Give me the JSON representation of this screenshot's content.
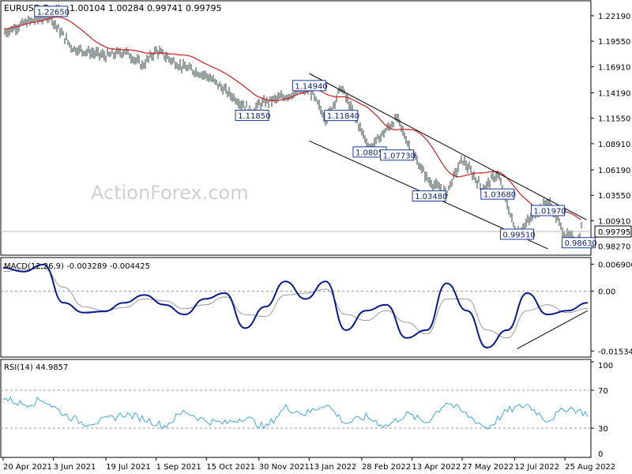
{
  "header": {
    "symbol": "EURUSD,Daily",
    "ohlc": "1.00104 1.00284 0.99741 0.99795"
  },
  "watermark": "ActionForex.com",
  "colors": {
    "price_bars": "#2f3f3f",
    "moving_average": "#cc1f1f",
    "label_box_border": "#1e3799",
    "label_text": "#0c1f6e",
    "macd_main": "#0a1a8c",
    "macd_signal": "#9a9a9a",
    "rsi_line": "#3fa9d6",
    "current_price_box": "#ffffff"
  },
  "x_axis": {
    "labels": [
      "20 Apr 2021",
      "3 Jun 2021",
      "19 Jul 2021",
      "1 Sep 2021",
      "15 Oct 2021",
      "30 Nov 2021",
      "13 Jan 2022",
      "28 Feb 2022",
      "13 Apr 2022",
      "27 May 2022",
      "12 Jul 2022",
      "25 Aug 2022"
    ]
  },
  "chart_data": [
    {
      "panel": "price",
      "type": "line",
      "title": "EURUSD,Daily",
      "y_axis_ticks": [
        "1.22190",
        "1.19550",
        "1.16910",
        "1.14190",
        "1.11550",
        "1.08910",
        "1.06190",
        "1.03550",
        "1.00910",
        "0.98270"
      ],
      "ylim": [
        0.975,
        1.235
      ],
      "current_price": "0.99795",
      "approximate_price_path": [
        {
          "date": "20 Apr 2021",
          "close": 1.204
        },
        {
          "date": "10 May 2021",
          "close": 1.215
        },
        {
          "date": "1 Jun 2021",
          "close": 1.222
        },
        {
          "date": "3 Jun 2021",
          "close": 1.215
        },
        {
          "date": "20 Jun 2021",
          "close": 1.188
        },
        {
          "date": "19 Jul 2021",
          "close": 1.18
        },
        {
          "date": "5 Aug 2021",
          "close": 1.185
        },
        {
          "date": "20 Aug 2021",
          "close": 1.17
        },
        {
          "date": "1 Sep 2021",
          "close": 1.186
        },
        {
          "date": "22 Sep 2021",
          "close": 1.17
        },
        {
          "date": "15 Oct 2021",
          "close": 1.16
        },
        {
          "date": "24 Nov 2021",
          "close": 1.122
        },
        {
          "date": "30 Nov 2021",
          "close": 1.13
        },
        {
          "date": "13 Jan 2022",
          "close": 1.146
        },
        {
          "date": "28 Jan 2022",
          "close": 1.114
        },
        {
          "date": "10 Feb 2022",
          "close": 1.148
        },
        {
          "date": "7 Mar 2022",
          "close": 1.084
        },
        {
          "date": "31 Mar 2022",
          "close": 1.116
        },
        {
          "date": "13 Apr 2022",
          "close": 1.08
        },
        {
          "date": "28 Apr 2022",
          "close": 1.05
        },
        {
          "date": "13 May 2022",
          "close": 1.038
        },
        {
          "date": "27 May 2022",
          "close": 1.073
        },
        {
          "date": "14 Jun 2022",
          "close": 1.042
        },
        {
          "date": "27 Jun 2022",
          "close": 1.058
        },
        {
          "date": "12 Jul 2022",
          "close": 1.001
        },
        {
          "date": "14 Jul 2022",
          "close": 0.996
        },
        {
          "date": "10 Aug 2022",
          "close": 1.03
        },
        {
          "date": "25 Aug 2022",
          "close": 0.995
        },
        {
          "date": "6 Sep 2022",
          "close": 0.988
        },
        {
          "date": "9 Sep 2022",
          "close": 1.005
        },
        {
          "date": "13 Sep 2022",
          "close": 0.998
        }
      ],
      "annotations": [
        {
          "label": "1.22650",
          "date": "1 Jun 2021",
          "value": 1.2265
        },
        {
          "label": "1.11850",
          "date": "24 Nov 2021",
          "value": 1.1185
        },
        {
          "label": "1.14940",
          "date": "13 Jan 2022",
          "value": 1.1494
        },
        {
          "label": "1.11840",
          "date": "10 Feb 2022",
          "value": 1.1184
        },
        {
          "label": "1.08050",
          "date": "7 Mar 2022",
          "value": 1.0805
        },
        {
          "label": "1.07730",
          "date": "31 Mar 2022",
          "value": 1.0773
        },
        {
          "label": "1.03480",
          "date": "28 Apr 2022",
          "value": 1.0348
        },
        {
          "label": "1.03680",
          "date": "27 Jun 2022",
          "value": 1.0368
        },
        {
          "label": "0.99510",
          "date": "14 Jul 2022",
          "value": 0.9951
        },
        {
          "label": "1.01970",
          "date": "10 Aug 2022",
          "value": 1.0197
        },
        {
          "label": "0.98630",
          "date": "6 Sep 2022",
          "value": 0.9863
        }
      ],
      "trend_lines": [
        {
          "from": {
            "date": "13 Jan 2022",
            "value": 1.162
          },
          "to": {
            "date": "13 Sep 2022",
            "value": 1.01
          }
        },
        {
          "from": {
            "date": "13 Jan 2022",
            "value": 1.092
          },
          "to": {
            "date": "10 Aug 2022",
            "value": 0.98
          }
        }
      ]
    },
    {
      "panel": "macd",
      "type": "line",
      "title": "MACD(12,26,9) -0.003289 -0.004425",
      "y_axis_ticks": [
        "0.006906",
        "0.00",
        "-0.015348"
      ],
      "ylim": [
        -0.0165,
        0.008
      ],
      "series": [
        {
          "role": "macd",
          "values": [
            0.006,
            0.005,
            0.0068,
            -0.003,
            -0.0055,
            -0.0052,
            -0.003,
            -0.001,
            -0.0035,
            -0.006,
            -0.002,
            -0.0005,
            -0.0095,
            -0.004,
            0.0025,
            -0.002,
            0.0025,
            -0.01,
            -0.005,
            -0.0035,
            -0.012,
            -0.01,
            0.002,
            -0.005,
            -0.0145,
            -0.01,
            -0.0005,
            -0.006,
            -0.005,
            -0.003
          ]
        },
        {
          "role": "signal",
          "values": [
            0.005,
            0.0055,
            0.0058,
            0.001,
            -0.004,
            -0.005,
            -0.0042,
            -0.002,
            -0.0025,
            -0.0045,
            -0.0035,
            -0.0015,
            -0.006,
            -0.0065,
            -0.001,
            -0.0005,
            0.0005,
            -0.006,
            -0.0075,
            -0.005,
            -0.008,
            -0.011,
            -0.002,
            -0.002,
            -0.01,
            -0.012,
            -0.005,
            -0.0035,
            -0.0055,
            -0.0044
          ]
        }
      ],
      "trend_lines": [
        {
          "from": {
            "date": "14 Jul 2022",
            "value": -0.0148
          },
          "to": {
            "date": "14 Sep 2022",
            "value": -0.005
          }
        }
      ]
    },
    {
      "panel": "rsi",
      "type": "line",
      "title": "RSI(14) 44.9857",
      "y_axis_ticks": [
        "100",
        "70",
        "30",
        "0"
      ],
      "ylim": [
        0,
        100
      ],
      "levels": [
        70,
        30
      ],
      "values": [
        62,
        55,
        60,
        45,
        35,
        38,
        45,
        40,
        32,
        48,
        38,
        35,
        42,
        30,
        52,
        45,
        56,
        35,
        42,
        32,
        45,
        36,
        58,
        44,
        30,
        48,
        55,
        38,
        52,
        45
      ]
    }
  ]
}
